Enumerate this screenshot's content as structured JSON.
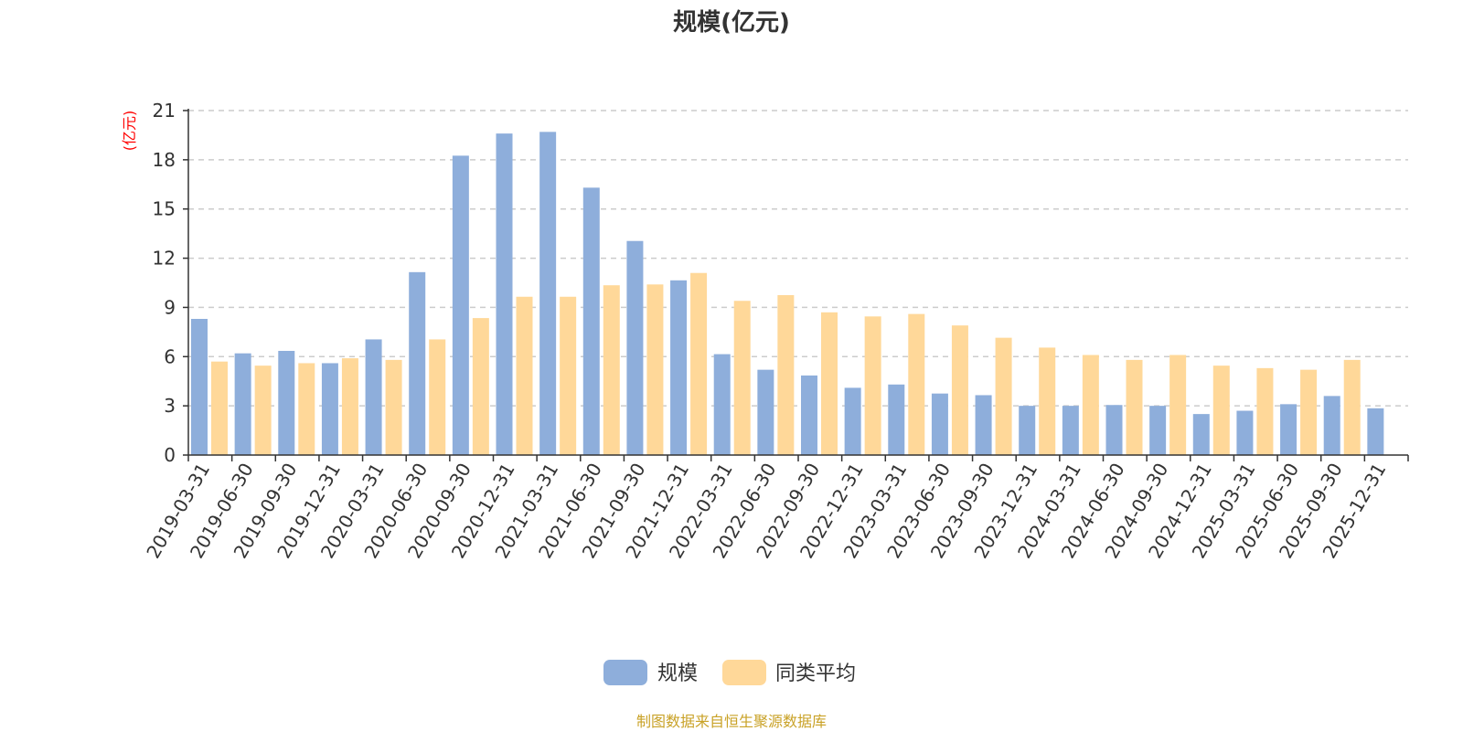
{
  "chart_data": {
    "type": "bar",
    "title": "规模(亿元)",
    "ylabel": "(亿元)",
    "ylim": [
      0,
      21
    ],
    "yticks": [
      "0",
      "3",
      "6",
      "9",
      "12",
      "15",
      "18",
      "21"
    ],
    "categories": [
      "2019-03-31",
      "2019-06-30",
      "2019-09-30",
      "2019-12-31",
      "2020-03-31",
      "2020-06-30",
      "2020-09-30",
      "2020-12-31",
      "2021-03-31",
      "2021-06-30",
      "2021-09-30",
      "2021-12-31",
      "2022-03-31",
      "2022-06-30",
      "2022-09-30",
      "2022-12-31",
      "2023-03-31",
      "2023-06-30",
      "2023-09-30",
      "2023-12-31",
      "2024-03-31",
      "2024-06-30",
      "2024-09-30",
      "2024-12-31",
      "2025-03-31",
      "2025-06-30",
      "2025-09-30",
      "2025-12-31"
    ],
    "series": [
      {
        "name": "规模",
        "color": "#8eaedb",
        "values": [
          8.3,
          6.2,
          6.35,
          5.6,
          7.05,
          11.15,
          18.25,
          19.6,
          19.7,
          16.3,
          13.05,
          10.65,
          6.15,
          5.2,
          4.85,
          4.1,
          4.3,
          3.75,
          3.65,
          3.0,
          3.0,
          3.05,
          3.0,
          2.5,
          2.7,
          3.1,
          3.6,
          2.85
        ]
      },
      {
        "name": "同类平均",
        "color": "#ffd899",
        "values": [
          5.7,
          5.45,
          5.6,
          5.9,
          5.8,
          7.05,
          8.35,
          9.65,
          9.65,
          10.35,
          10.4,
          11.1,
          9.4,
          9.75,
          8.7,
          8.45,
          8.6,
          7.9,
          7.15,
          6.55,
          6.1,
          5.8,
          6.1,
          5.45,
          5.3,
          5.2,
          5.8,
          null
        ]
      }
    ],
    "grid": true,
    "legend_position": "bottom-center"
  },
  "legend": {
    "items": [
      "规模",
      "同类平均"
    ]
  },
  "footer": {
    "source": "制图数据来自恒生聚源数据库"
  },
  "colors": {
    "axis": "#333333",
    "grid": "#cccccc",
    "unit": "#ff0000",
    "source": "#c9a227"
  }
}
